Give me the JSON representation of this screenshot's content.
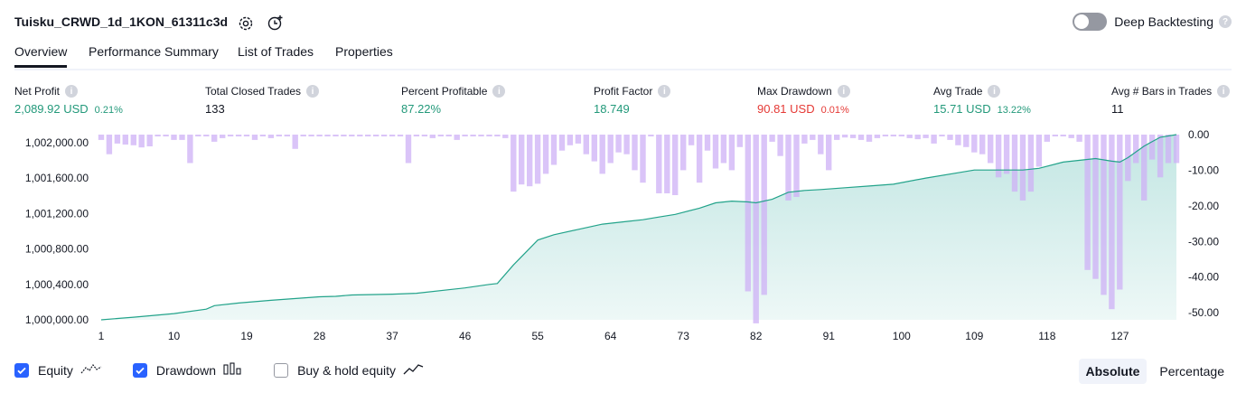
{
  "header": {
    "title": "Tuisku_CRWD_1d_1KON_61311c3d",
    "deep_backtesting_label": "Deep Backtesting",
    "deep_backtesting_enabled": false,
    "help_glyph": "?"
  },
  "tabs": [
    {
      "label": "Overview",
      "active": true
    },
    {
      "label": "Performance Summary",
      "active": false
    },
    {
      "label": "List of Trades",
      "active": false
    },
    {
      "label": "Properties",
      "active": false
    }
  ],
  "metrics": [
    {
      "label": "Net Profit",
      "value": "2,089.92 USD",
      "pct": "0.21%",
      "color": "#22997a"
    },
    {
      "label": "Total Closed Trades",
      "value": "133",
      "pct": "",
      "color": "#131722"
    },
    {
      "label": "Percent Profitable",
      "value": "87.22%",
      "pct": "",
      "color": "#22997a"
    },
    {
      "label": "Profit Factor",
      "value": "18.749",
      "pct": "",
      "color": "#22997a"
    },
    {
      "label": "Max Drawdown",
      "value": "90.81 USD",
      "pct": "0.01%",
      "color": "#e53935"
    },
    {
      "label": "Avg Trade",
      "value": "15.71 USD",
      "pct": "13.22%",
      "color": "#22997a"
    },
    {
      "label": "Avg # Bars in Trades",
      "value": "11",
      "pct": "",
      "color": "#131722"
    }
  ],
  "chart_data": {
    "type": "area",
    "x_range": [
      1,
      134
    ],
    "x_ticks": [
      1,
      10,
      19,
      28,
      37,
      46,
      55,
      64,
      73,
      82,
      91,
      100,
      109,
      118,
      127
    ],
    "left_axis": {
      "ticks": [
        "1,002,000.00",
        "1,001,600.00",
        "1,001,200.00",
        "1,000,800.00",
        "1,000,400.00",
        "1,000,000.00"
      ],
      "values": [
        1002000,
        1001600,
        1001200,
        1000800,
        1000400,
        1000000
      ],
      "range": [
        1000000,
        1002089.92
      ]
    },
    "right_axis": {
      "ticks": [
        "0.00",
        "-10.00",
        "-20.00",
        "-30.00",
        "-40.00",
        "-50.00"
      ],
      "values": [
        0,
        -10,
        -20,
        -30,
        -40,
        -50
      ],
      "range": [
        -52,
        0
      ]
    },
    "equity": [
      [
        1,
        1000000
      ],
      [
        5,
        1000030
      ],
      [
        10,
        1000070
      ],
      [
        14,
        1000120
      ],
      [
        15,
        1000160
      ],
      [
        18,
        1000190
      ],
      [
        22,
        1000220
      ],
      [
        28,
        1000260
      ],
      [
        30,
        1000265
      ],
      [
        32,
        1000280
      ],
      [
        37,
        1000290
      ],
      [
        40,
        1000300
      ],
      [
        46,
        1000360
      ],
      [
        49,
        1000400
      ],
      [
        50,
        1000410
      ],
      [
        52,
        1000620
      ],
      [
        55,
        1000900
      ],
      [
        57,
        1000960
      ],
      [
        60,
        1001020
      ],
      [
        63,
        1001080
      ],
      [
        66,
        1001110
      ],
      [
        68,
        1001130
      ],
      [
        70,
        1001160
      ],
      [
        72,
        1001190
      ],
      [
        75,
        1001260
      ],
      [
        77,
        1001320
      ],
      [
        79,
        1001340
      ],
      [
        81,
        1001330
      ],
      [
        82,
        1001320
      ],
      [
        84,
        1001360
      ],
      [
        86,
        1001440
      ],
      [
        88,
        1001460
      ],
      [
        90,
        1001470
      ],
      [
        93,
        1001490
      ],
      [
        96,
        1001510
      ],
      [
        99,
        1001530
      ],
      [
        103,
        1001600
      ],
      [
        107,
        1001660
      ],
      [
        109,
        1001690
      ],
      [
        111,
        1001690
      ],
      [
        113,
        1001690
      ],
      [
        115,
        1001690
      ],
      [
        117,
        1001710
      ],
      [
        120,
        1001780
      ],
      [
        124,
        1001820
      ],
      [
        126,
        1001790
      ],
      [
        127,
        1001780
      ],
      [
        128,
        1001830
      ],
      [
        130,
        1001960
      ],
      [
        132,
        1002060
      ],
      [
        134,
        1002089.92
      ]
    ],
    "drawdown": [
      -1.5,
      -5.5,
      -2.5,
      -2.8,
      -3.0,
      -3.6,
      -3.3,
      -0.5,
      -0.5,
      -1.5,
      -1.5,
      -8.0,
      -0.5,
      -0.5,
      -2.0,
      -1.0,
      -0.5,
      -0.5,
      -0.5,
      -1.5,
      -0.5,
      -1.0,
      -0.5,
      -0.5,
      -4.0,
      -0.5,
      -0.5,
      -0.5,
      -0.5,
      -0.5,
      -0.5,
      -0.5,
      -0.5,
      -0.5,
      -0.5,
      -0.5,
      -0.5,
      -0.5,
      -8.0,
      -0.5,
      -0.5,
      -1.0,
      -0.5,
      -0.5,
      -1.5,
      -0.5,
      -0.5,
      -0.5,
      -0.5,
      -0.5,
      -1.0,
      -16.0,
      -14.0,
      -14.5,
      -13.8,
      -11.0,
      -8.5,
      -4.5,
      -3.0,
      -2.5,
      -5.5,
      -7.5,
      -11.0,
      -8.0,
      -5.0,
      -5.5,
      -10.0,
      -13.5,
      -0.5,
      -16.5,
      -16.5,
      -17.0,
      -10.0,
      -3.0,
      -13.5,
      -4.5,
      -9.5,
      -8.0,
      -10.0,
      -3.5,
      -44.0,
      -53.0,
      -45.0,
      -2.0,
      -6.0,
      -18.5,
      -17.5,
      -2.5,
      -1.5,
      -5.5,
      -10.0,
      -1.5,
      -0.8,
      -1.0,
      -1.5,
      -2.0,
      -1.0,
      -0.5,
      -0.5,
      -0.5,
      -1.0,
      -1.3,
      -1.0,
      -2.5,
      -0.5,
      -1.5,
      -3.0,
      -3.5,
      -5.0,
      -5.5,
      -8.0,
      -12.0,
      -11.0,
      -16.0,
      -18.5,
      -16.0,
      -9.0,
      -2.0,
      -0.5,
      -0.5,
      -1.0,
      -2.0,
      -38.0,
      -40.5,
      -45.0,
      -49.0,
      -43.5,
      -13.0,
      -8.0,
      -18.5,
      -7.0,
      -12.0,
      -8.0,
      -8.0
    ]
  },
  "legend": [
    {
      "label": "Equity",
      "checked": true,
      "icon": "equity-line-icon"
    },
    {
      "label": "Drawdown",
      "checked": true,
      "icon": "drawdown-bars-icon"
    },
    {
      "label": "Buy & hold equity",
      "checked": false,
      "icon": "buy-hold-line-icon"
    }
  ],
  "modes": [
    {
      "label": "Absolute",
      "active": true
    },
    {
      "label": "Percentage",
      "active": false
    }
  ],
  "colors": {
    "equity_line": "#22a38a",
    "equity_fill": "#26a69a",
    "drawdown_bar": "#cdb0f5",
    "checkbox": "#2962ff"
  }
}
